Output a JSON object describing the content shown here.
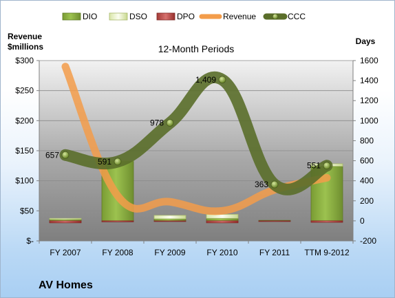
{
  "chart_data": {
    "type": "bar",
    "title": "12-Month Periods",
    "footer": "AV Homes",
    "categories": [
      "FY 2007",
      "FY 2008",
      "FY 2009",
      "FY 2010",
      "FY 2011",
      "TTM 9-2012"
    ],
    "left_axis": {
      "label_line1": "Revenue",
      "label_line2": "$millions",
      "range": [
        0,
        300
      ],
      "ticks": [
        0,
        50,
        100,
        150,
        200,
        250,
        300
      ],
      "tick_labels": [
        "$-",
        "$50",
        "$100",
        "$150",
        "$200",
        "$250",
        "$300"
      ]
    },
    "right_axis": {
      "label": "Days",
      "range": [
        -200,
        1600
      ],
      "ticks": [
        -200,
        0,
        200,
        400,
        600,
        800,
        1000,
        1200,
        1400,
        1600
      ],
      "tick_labels": [
        "-200",
        "0",
        "200",
        "400",
        "600",
        "800",
        "1000",
        "1200",
        "1400",
        "1600"
      ]
    },
    "series": [
      {
        "name": "DIO",
        "type": "bar",
        "axis": "right",
        "color": "#8fb443",
        "values": [
          15,
          600,
          20,
          25,
          5,
          545
        ]
      },
      {
        "name": "DSO",
        "type": "bar",
        "axis": "right",
        "color": "#f2f7d8",
        "values": [
          10,
          5,
          35,
          40,
          0,
          25
        ]
      },
      {
        "name": "DPO",
        "type": "bar",
        "axis": "right",
        "color": "#c0504d",
        "values": [
          -20,
          -10,
          -5,
          -20,
          -5,
          -15
        ]
      },
      {
        "name": "Revenue",
        "type": "line",
        "axis": "left",
        "color": "#f39c4a",
        "values": [
          290,
          75,
          65,
          50,
          85,
          105
        ]
      },
      {
        "name": "CCC",
        "type": "line",
        "axis": "right",
        "color": "#5a6e2a",
        "values": [
          657,
          591,
          978,
          1409,
          363,
          551
        ],
        "labels": [
          "657",
          "591",
          "978",
          "1,409",
          "363",
          "551"
        ]
      }
    ],
    "legend_position": "top",
    "grid": true
  }
}
